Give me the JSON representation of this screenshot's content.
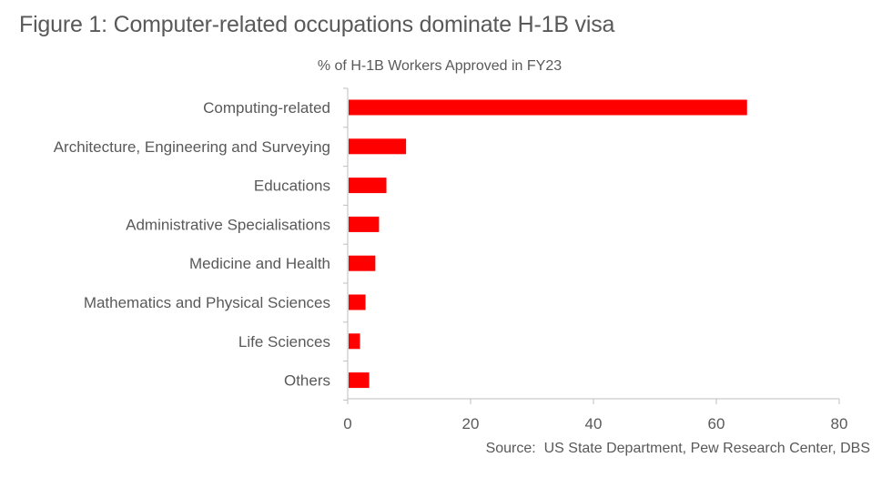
{
  "figure": {
    "title": "Figure 1: Computer-related occupations dominate H-1B visa",
    "source": "Source:  US State Department, Pew Research Center, DBS"
  },
  "chart_data": {
    "type": "bar",
    "orientation": "horizontal",
    "title": "% of H-1B Workers Approved in FY23",
    "categories": [
      "Computing-related",
      "Architecture, Engineering and Surveying",
      "Educations",
      "Administrative Specialisations",
      "Medicine and Health",
      "Mathematics and Physical Sciences",
      "Life Sciences",
      "Others"
    ],
    "values": [
      65,
      9.5,
      6.3,
      5.1,
      4.5,
      2.9,
      2.0,
      3.5
    ],
    "xlim": [
      0,
      80
    ],
    "xticks": [
      0,
      20,
      40,
      60,
      80
    ],
    "bar_color": "#ff0000",
    "axis_color": "#bfbfbf",
    "grid": false,
    "legend": "none"
  }
}
